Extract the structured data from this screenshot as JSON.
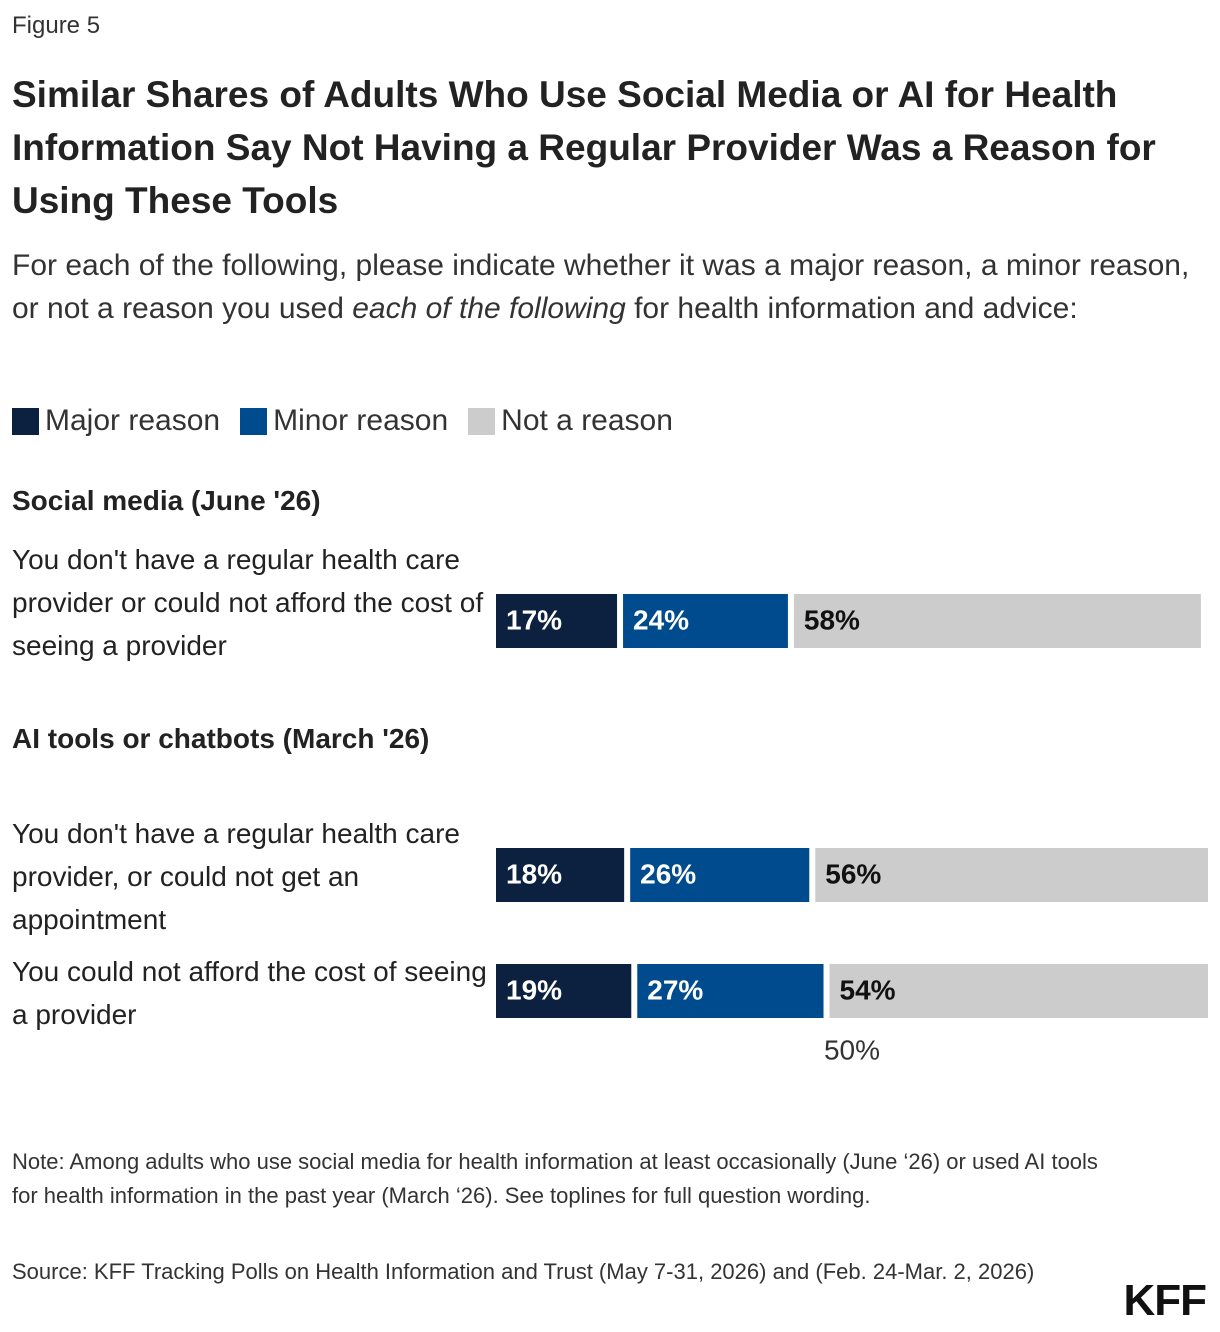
{
  "figure_label": "Figure 5",
  "chart_data": {
    "type": "stacked-bar",
    "title": "Similar Shares of Adults Who Use Social Media or AI for Health Information Say Not Having a Regular Provider Was a Reason for Using These Tools",
    "subtitle": [
      "For each of the following, please indicate whether it was a major reason, a minor reason, or not a reason you used ",
      "each of the following",
      " for health information and advice:"
    ],
    "group_labels": [
      "Social media (June '26)",
      "AI tools or chatbots (March '26)",
      null
    ],
    "categories": [
      "You don't have a regular health care provider or could not afford the cost of seeing a provider",
      "You don't have a regular health care provider, or could not get an appointment",
      "You could not afford the cost of seeing a provider"
    ],
    "series": [
      {
        "name": "Major reason",
        "color": "#0c213f",
        "label_color": "#ffffff",
        "values": [
          17,
          18,
          19
        ],
        "value_labels": [
          "17%",
          "18%",
          "19%"
        ]
      },
      {
        "name": "Minor reason",
        "color": "#004b8d",
        "label_color": "#ffffff",
        "values": [
          24,
          26,
          27
        ],
        "value_labels": [
          "24%",
          "26%",
          "27%"
        ]
      },
      {
        "name": "Not a reason",
        "color": "#cccccc",
        "label_color": "#111111",
        "values": [
          58,
          56,
          54
        ],
        "value_labels": [
          "58%",
          "56%",
          "54%"
        ]
      }
    ],
    "xlim": [
      0,
      100
    ],
    "xticks": [
      {
        "value": 50,
        "label": "50%"
      }
    ],
    "note": "Note: Among adults who use social media for health information at least occasionally (June ‘26) or used AI tools for health information in the past year (March ‘26). See toplines for full question wording.",
    "source": "Source: KFF Tracking Polls on Health Information and Trust (May 7-31, 2026) and (Feb. 24-Mar. 2, 2026)"
  },
  "logo": "KFF"
}
